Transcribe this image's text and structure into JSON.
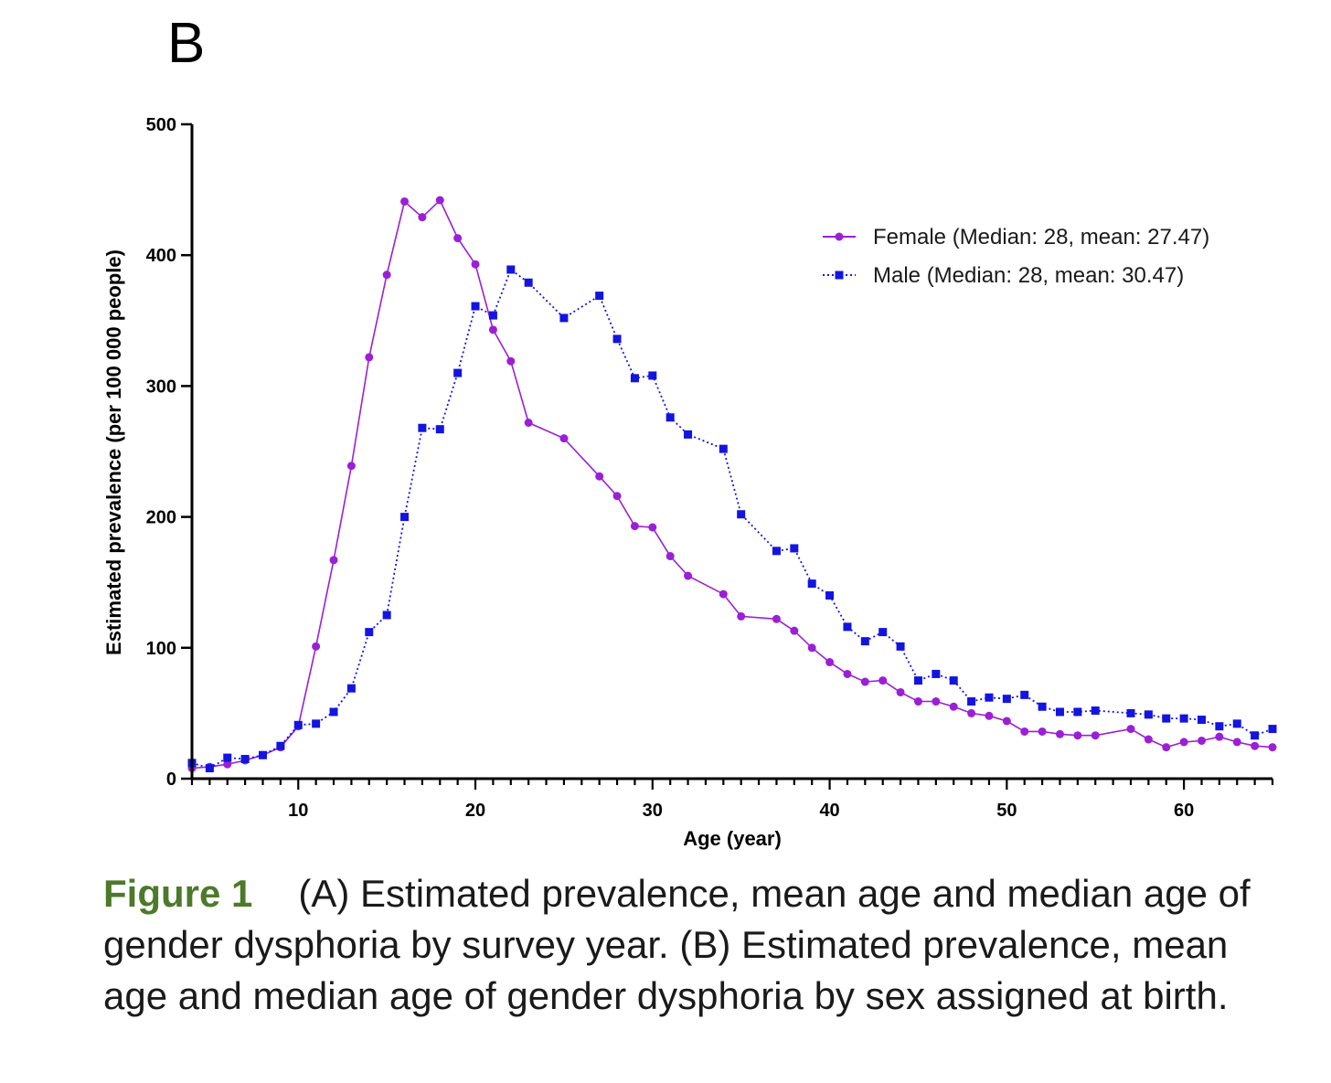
{
  "panel_label": "B",
  "caption": {
    "label": "Figure 1",
    "text": "(A) Estimated prevalence, mean age and median age of gender dysphoria by survey year. (B) Estimated prevalence, mean age and median age of gender dysphoria by sex assigned at birth."
  },
  "colors": {
    "female": "#9b1fd6",
    "male": "#1414e0",
    "axis": "#000000"
  },
  "chart_data": {
    "type": "line",
    "xlabel": "Age (year)",
    "ylabel": "Estimated prevalence (per 100 000 people)",
    "xlim": [
      4,
      65
    ],
    "ylim": [
      0,
      500
    ],
    "xticks": [
      10,
      20,
      30,
      40,
      50,
      60
    ],
    "yticks": [
      0,
      100,
      200,
      300,
      400,
      500
    ],
    "legend_position": "top-right",
    "x": [
      4,
      5,
      6,
      7,
      8,
      9,
      10,
      11,
      12,
      13,
      14,
      15,
      16,
      17,
      18,
      19,
      20,
      21,
      22,
      23,
      24,
      25,
      26,
      27,
      28,
      29,
      30,
      31,
      32,
      33,
      34,
      35,
      36,
      37,
      38,
      39,
      40,
      41,
      42,
      43,
      44,
      45,
      46,
      47,
      48,
      49,
      50,
      51,
      52,
      53,
      54,
      55,
      56,
      57,
      58,
      59,
      60,
      61,
      62,
      63,
      64,
      65
    ],
    "series": [
      {
        "name": "Female (Median: 28, mean: 27.47)",
        "marker": "circle",
        "line_style": "solid",
        "values": [
          8,
          9,
          11,
          14,
          18,
          24,
          40,
          101,
          167,
          239,
          322,
          385,
          441,
          429,
          442,
          413,
          393,
          343,
          319,
          272,
          null,
          260,
          null,
          231,
          216,
          193,
          192,
          170,
          155,
          null,
          141,
          124,
          null,
          122,
          113,
          100,
          89,
          80,
          74,
          75,
          66,
          59,
          59,
          55,
          50,
          48,
          44,
          36,
          36,
          34,
          33,
          33,
          null,
          38,
          30,
          24,
          28,
          29,
          32,
          28,
          25,
          24
        ]
      },
      {
        "name": "Male (Median: 28, mean: 30.47)",
        "marker": "square",
        "line_style": "dotted",
        "values": [
          12,
          8,
          16,
          15,
          18,
          25,
          41,
          42,
          51,
          69,
          112,
          125,
          200,
          268,
          267,
          310,
          361,
          354,
          389,
          379,
          null,
          352,
          null,
          369,
          336,
          306,
          308,
          276,
          263,
          null,
          252,
          202,
          null,
          174,
          176,
          149,
          140,
          116,
          105,
          112,
          101,
          75,
          80,
          75,
          59,
          62,
          61,
          64,
          55,
          51,
          51,
          52,
          null,
          50,
          49,
          46,
          46,
          45,
          40,
          42,
          33,
          38
        ]
      }
    ]
  }
}
